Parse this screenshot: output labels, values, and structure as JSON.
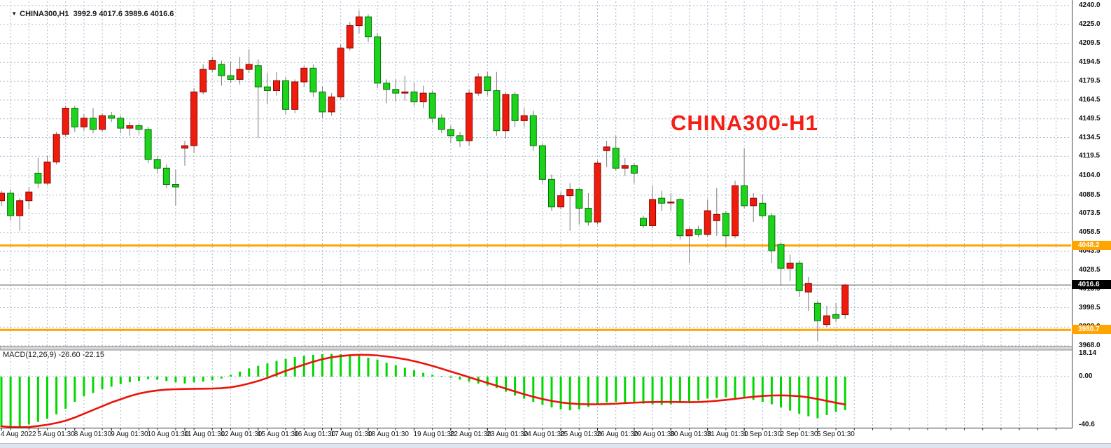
{
  "quote_bar": {
    "symbol_period": "CHINA300,H1",
    "open": "3992.9",
    "high": "4017.6",
    "low": "3989.6",
    "close": "4016.6",
    "dropdown_icon": "triangle-down"
  },
  "watermark": "CHINA300-H1",
  "price_axis": {
    "labels": [
      "4240.0",
      "4225.0",
      "4209.5",
      "4194.5",
      "4179.5",
      "4164.5",
      "4149.5",
      "4134.5",
      "4119.5",
      "4104.0",
      "4088.5",
      "4073.5",
      "4058.5",
      "4043.5",
      "4028.5",
      "4013.5",
      "3998.5",
      "3983.0",
      "3968.0"
    ],
    "top_price": 4240.0,
    "bottom_price": 3968.0,
    "badges": [
      {
        "value": "4048.2",
        "price": 4048.2,
        "type": "orange"
      },
      {
        "value": "4016.6",
        "price": 4016.6,
        "type": "black"
      },
      {
        "value": "3980.7",
        "price": 3980.7,
        "type": "orange"
      }
    ]
  },
  "macd_panel": {
    "name": "MACD(12,26,9)",
    "main_value": "-26.60",
    "signal_value": "-22.15",
    "axis_labels": [
      {
        "text": "18.14",
        "value": 18.14
      },
      {
        "text": "0.00",
        "value": 0.0
      },
      {
        "text": "-40.6",
        "value": -40.6
      }
    ]
  },
  "time_axis": {
    "ticks": [
      {
        "index": 0,
        "label": "4 Aug 2022"
      },
      {
        "index": 4,
        "label": "5 Aug 01:30"
      },
      {
        "index": 8,
        "label": "8 Aug 01:30"
      },
      {
        "index": 12,
        "label": "9 Aug 01:30"
      },
      {
        "index": 16,
        "label": "10 Aug 01:30"
      },
      {
        "index": 20,
        "label": "11 Aug 01:30"
      },
      {
        "index": 24,
        "label": "12 Aug 01:30"
      },
      {
        "index": 28,
        "label": "15 Aug 01:30"
      },
      {
        "index": 32,
        "label": "16 Aug 01:30"
      },
      {
        "index": 36,
        "label": "17 Aug 01:30"
      },
      {
        "index": 40,
        "label": "18 Aug 01:30"
      },
      {
        "index": 45,
        "label": "19 Aug 01:30"
      },
      {
        "index": 49,
        "label": "22 Aug 01:30"
      },
      {
        "index": 53,
        "label": "23 Aug 01:30"
      },
      {
        "index": 57,
        "label": "24 Aug 01:30"
      },
      {
        "index": 61,
        "label": "25 Aug 01:30"
      },
      {
        "index": 65,
        "label": "26 Aug 01:30"
      },
      {
        "index": 69,
        "label": "29 Aug 01:30"
      },
      {
        "index": 73,
        "label": "30 Aug 01:30"
      },
      {
        "index": 77,
        "label": "31 Aug 01:30"
      },
      {
        "index": 81,
        "label": "1 Sep 01:30"
      },
      {
        "index": 85,
        "label": "2 Sep 01:30"
      },
      {
        "index": 89,
        "label": "5 Sep 01:30"
      }
    ]
  },
  "colors": {
    "up_fill": "#ee1c0c",
    "up_border": "#8e0000",
    "down_fill": "#1bd41b",
    "down_border": "#0a6f0a",
    "wick": "#7a7a7a",
    "grid": "#a7b9ce",
    "hline_orange": "#ffa400",
    "price_line": "#5a5a5a",
    "macd_hist": "#00d800",
    "macd_signal": "#ec130a",
    "badge_black": "#000000",
    "watermark": "#f41e14"
  },
  "chart_data": {
    "type": "candlestick",
    "title": "CHINA300-H1",
    "symbol": "CHINA300",
    "timeframe": "H1",
    "price_range": [
      3968.0,
      4240.0
    ],
    "horizontal_lines": [
      4048.2,
      3980.7
    ],
    "current_price": 4016.6,
    "candles_ohlc": [
      [
        4084,
        4092,
        4080,
        4090
      ],
      [
        4090,
        4093,
        4068,
        4072
      ],
      [
        4072,
        4086,
        4060,
        4084
      ],
      [
        4084,
        4095,
        4077,
        4091
      ],
      [
        4106,
        4118,
        4094,
        4098
      ],
      [
        4098,
        4120,
        4096,
        4115
      ],
      [
        4115,
        4139,
        4113,
        4137
      ],
      [
        4137,
        4160,
        4135,
        4158
      ],
      [
        4158,
        4160,
        4139,
        4143
      ],
      [
        4143,
        4153,
        4140,
        4150
      ],
      [
        4150,
        4158,
        4138,
        4141
      ],
      [
        4141,
        4154,
        4139,
        4152
      ],
      [
        4152,
        4155,
        4147,
        4150
      ],
      [
        4150,
        4152,
        4138,
        4142
      ],
      [
        4142,
        4147,
        4136,
        4144
      ],
      [
        4144,
        4146,
        4137,
        4141
      ],
      [
        4141,
        4143,
        4114,
        4117
      ],
      [
        4117,
        4119,
        4106,
        4110
      ],
      [
        4110,
        4113,
        4094,
        4097
      ],
      [
        4097,
        4109,
        4080,
        4095
      ],
      [
        4126,
        4132,
        4112,
        4128
      ],
      [
        4128,
        4174,
        4122,
        4171
      ],
      [
        4171,
        4193,
        4169,
        4189
      ],
      [
        4189,
        4199,
        4187,
        4196
      ],
      [
        4193,
        4196,
        4176,
        4184
      ],
      [
        4184,
        4195,
        4178,
        4181
      ],
      [
        4181,
        4199,
        4177,
        4189
      ],
      [
        4189,
        4205,
        4186,
        4193
      ],
      [
        4192,
        4197,
        4134,
        4175
      ],
      [
        4175,
        4186,
        4161,
        4172
      ],
      [
        4172,
        4187,
        4168,
        4180
      ],
      [
        4180,
        4183,
        4153,
        4157
      ],
      [
        4157,
        4181,
        4154,
        4179
      ],
      [
        4179,
        4192,
        4175,
        4190
      ],
      [
        4190,
        4193,
        4167,
        4171
      ],
      [
        4171,
        4175,
        4150,
        4155
      ],
      [
        4155,
        4170,
        4152,
        4167
      ],
      [
        4167,
        4209,
        4165,
        4206
      ],
      [
        4206,
        4227,
        4204,
        4224
      ],
      [
        4224,
        4236,
        4218,
        4231
      ],
      [
        4231,
        4233,
        4211,
        4215
      ],
      [
        4215,
        4218,
        4174,
        4178
      ],
      [
        4178,
        4181,
        4162,
        4173
      ],
      [
        4173,
        4181,
        4163,
        4170
      ],
      [
        4170,
        4184,
        4164,
        4171
      ],
      [
        4171,
        4178,
        4160,
        4163
      ],
      [
        4163,
        4176,
        4158,
        4170
      ],
      [
        4170,
        4172,
        4146,
        4150
      ],
      [
        4150,
        4153,
        4138,
        4141
      ],
      [
        4141,
        4144,
        4130,
        4136
      ],
      [
        4136,
        4139,
        4127,
        4132
      ],
      [
        4132,
        4173,
        4128,
        4170
      ],
      [
        4170,
        4186,
        4168,
        4183
      ],
      [
        4183,
        4187,
        4168,
        4172
      ],
      [
        4172,
        4187,
        4136,
        4140
      ],
      [
        4140,
        4171,
        4134,
        4169
      ],
      [
        4169,
        4171,
        4143,
        4148
      ],
      [
        4148,
        4158,
        4143,
        4152
      ],
      [
        4152,
        4156,
        4124,
        4128
      ],
      [
        4128,
        4130,
        4098,
        4101
      ],
      [
        4101,
        4105,
        4076,
        4079
      ],
      [
        4079,
        4091,
        4077,
        4088
      ],
      [
        4088,
        4098,
        4060,
        4093
      ],
      [
        4093,
        4094,
        4065,
        4078
      ],
      [
        4078,
        4090,
        4064,
        4067
      ],
      [
        4067,
        4116,
        4065,
        4114
      ],
      [
        4124,
        4132,
        4111,
        4127
      ],
      [
        4126,
        4136,
        4108,
        4110
      ],
      [
        4110,
        4118,
        4104,
        4112
      ],
      [
        4112,
        4114,
        4098,
        4106
      ],
      [
        4070,
        4072,
        4062,
        4064
      ],
      [
        4064,
        4096,
        4062,
        4085
      ],
      [
        4086,
        4092,
        4076,
        4082
      ],
      [
        4083,
        4090,
        4076,
        4083
      ],
      [
        4085,
        4086,
        4053,
        4056
      ],
      [
        4056,
        4063,
        4034,
        4061
      ],
      [
        4061,
        4064,
        4055,
        4057
      ],
      [
        4057,
        4085,
        4055,
        4076
      ],
      [
        4068,
        4094,
        4056,
        4073
      ],
      [
        4074,
        4076,
        4047,
        4056
      ],
      [
        4056,
        4100,
        4054,
        4096
      ],
      [
        4096,
        4126,
        4078,
        4080
      ],
      [
        4080,
        4090,
        4067,
        4086
      ],
      [
        4082,
        4089,
        4070,
        4072
      ],
      [
        4072,
        4074,
        4034,
        4044
      ],
      [
        4049,
        4051,
        4017,
        4030
      ],
      [
        4030,
        4041,
        4020,
        4034
      ],
      [
        4034,
        4036,
        4007,
        4012
      ],
      [
        4011,
        4023,
        3996,
        4018
      ],
      [
        4002,
        4004,
        3972,
        3988
      ],
      [
        3985,
        4000,
        3983,
        3992
      ],
      [
        3993,
        4002,
        3987,
        3990
      ],
      [
        3992.9,
        4017.6,
        3989.6,
        4016.6
      ]
    ],
    "macd": {
      "range": [
        -40.6,
        18.14
      ],
      "histogram": [
        -40.0,
        -40.6,
        -39.5,
        -38.0,
        -36.0,
        -33.5,
        -30.0,
        -25.5,
        -20.0,
        -15.5,
        -13.0,
        -10.0,
        -8.0,
        -6.0,
        -4.5,
        -3.5,
        -2.0,
        -2.5,
        -3.5,
        -4.5,
        -5.5,
        -4.5,
        -4.0,
        -3.0,
        -1.5,
        1.5,
        4.0,
        6.5,
        8.5,
        10.5,
        12.5,
        14.0,
        15.5,
        16.5,
        17.3,
        17.8,
        18.1,
        17.8,
        17.3,
        16.5,
        15.0,
        13.5,
        11.0,
        9.0,
        7.0,
        5.0,
        3.0,
        1.5,
        0.5,
        -1.0,
        -2.5,
        -4.0,
        -5.5,
        -7.0,
        -9.0,
        -12.0,
        -15.0,
        -17.5,
        -20.0,
        -22.5,
        -24.5,
        -26.0,
        -26.8,
        -26.0,
        -24.0,
        -22.0,
        -20.5,
        -20.0,
        -20.5,
        -21.0,
        -21.5,
        -22.0,
        -22.5,
        -22.0,
        -21.0,
        -20.0,
        -19.0,
        -17.5,
        -17.0,
        -16.5,
        -17.0,
        -17.5,
        -18.5,
        -20.0,
        -22.0,
        -24.5,
        -27.0,
        -29.5,
        -31.5,
        -33.0,
        -30.5,
        -28.0,
        -26.6
      ],
      "signal": [
        -39.5,
        -40.0,
        -40.2,
        -40.0,
        -39.2,
        -38.2,
        -36.8,
        -35.0,
        -32.5,
        -29.5,
        -26.5,
        -23.5,
        -20.5,
        -18.0,
        -15.5,
        -13.5,
        -12.0,
        -11.0,
        -10.3,
        -10.0,
        -9.8,
        -9.7,
        -9.6,
        -9.5,
        -9.2,
        -8.5,
        -7.2,
        -5.5,
        -3.5,
        -1.0,
        1.8,
        4.5,
        7.0,
        9.5,
        11.8,
        13.8,
        15.3,
        16.3,
        17.0,
        17.3,
        17.2,
        16.8,
        16.0,
        15.0,
        13.8,
        12.3,
        10.5,
        8.5,
        6.3,
        4.0,
        1.8,
        -0.5,
        -2.8,
        -5.0,
        -7.2,
        -9.5,
        -11.8,
        -14.0,
        -16.0,
        -17.8,
        -19.3,
        -20.5,
        -21.3,
        -21.8,
        -22.0,
        -22.0,
        -21.8,
        -21.5,
        -21.0,
        -20.7,
        -20.4,
        -20.2,
        -20.1,
        -20.1,
        -20.2,
        -20.3,
        -20.2,
        -19.8,
        -19.2,
        -18.5,
        -17.7,
        -16.8,
        -16.0,
        -15.4,
        -15.0,
        -14.9,
        -15.1,
        -15.6,
        -16.5,
        -17.8,
        -19.3,
        -20.8,
        -22.15
      ]
    }
  }
}
